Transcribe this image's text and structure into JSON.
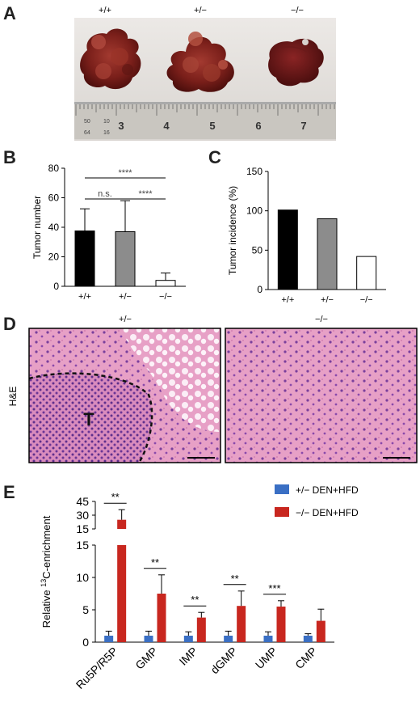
{
  "panels": {
    "A": "A",
    "B": "B",
    "C": "C",
    "D": "D",
    "E": "E"
  },
  "panelA": {
    "genotypes": [
      "+/+",
      "+/−",
      "−/−"
    ],
    "ruler_numbers": [
      "3",
      "4",
      "5",
      "6",
      "7"
    ],
    "ruler_small": [
      "50",
      "10",
      "64",
      "16"
    ]
  },
  "panelD": {
    "genotypes": [
      "+/−",
      "−/−"
    ],
    "stain_label": "H&E",
    "tumor_label": "T"
  },
  "chart_data": [
    {
      "id": "B",
      "type": "bar",
      "categories": [
        "+/+",
        "+/−",
        "−/−"
      ],
      "values": [
        37.5,
        37,
        4
      ],
      "errors": [
        15,
        21,
        5
      ],
      "colors": [
        "#000000",
        "#8c8c8c",
        "#ffffff"
      ],
      "ylabel": "Tumor number",
      "ylim": [
        0,
        80
      ],
      "yticks": [
        "0",
        "20",
        "40",
        "60",
        "80"
      ],
      "significance": [
        {
          "label": "****",
          "from": 0,
          "to": 2
        },
        {
          "label": "n.s.",
          "from": 0,
          "to": 1
        },
        {
          "label": "****",
          "from": 1,
          "to": 2
        }
      ]
    },
    {
      "id": "C",
      "type": "bar",
      "categories": [
        "+/+",
        "+/−",
        "−/−"
      ],
      "values": [
        101,
        90,
        42
      ],
      "colors": [
        "#000000",
        "#8c8c8c",
        "#ffffff"
      ],
      "ylabel": "Tumor incidence (%)",
      "ylim": [
        0,
        150
      ],
      "yticks": [
        "0",
        "50",
        "100",
        "150"
      ]
    },
    {
      "id": "E",
      "type": "bar",
      "categories": [
        "Ru5P/R5P",
        "GMP",
        "IMP",
        "dGMP",
        "UMP",
        "CMP"
      ],
      "series": [
        {
          "name": "+/− DEN+HFD",
          "color": "#3a6fc4",
          "values": [
            1,
            1,
            1,
            1,
            1,
            1
          ],
          "errors": [
            0.7,
            0.7,
            0.6,
            0.7,
            0.6,
            0.3
          ]
        },
        {
          "name": "−/− DEN+HFD",
          "color": "#c8271f",
          "values": [
            25,
            7.5,
            3.8,
            5.6,
            5.5,
            3.3
          ],
          "errors": [
            11,
            2.9,
            0.8,
            2.3,
            0.9,
            1.8
          ]
        }
      ],
      "ylabel_pre": "Relative ",
      "ylabel_sup": "13",
      "ylabel_post": "C-enrichment",
      "ylim_lower": [
        0,
        15
      ],
      "ylim_upper": [
        15,
        45
      ],
      "yticks_lower": [
        "0",
        "5",
        "10",
        "15"
      ],
      "yticks_upper": [
        "15",
        "30",
        "45"
      ],
      "significance": [
        "**",
        "**",
        "**",
        "**",
        "***",
        ""
      ]
    }
  ]
}
